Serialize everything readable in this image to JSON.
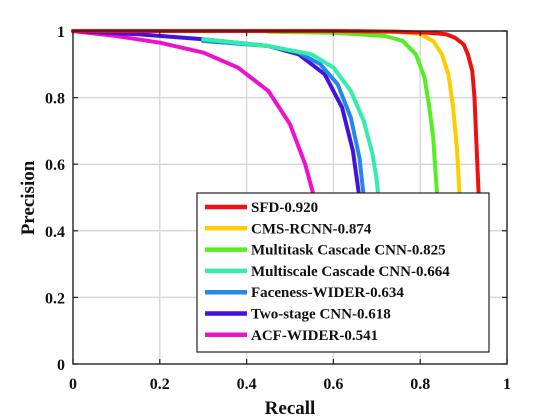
{
  "chart_data": {
    "type": "line",
    "title": "",
    "xlabel": "Recall",
    "ylabel": "Precision",
    "xlim": [
      0,
      1
    ],
    "ylim": [
      0,
      1
    ],
    "xticks": [
      0,
      0.2,
      0.4,
      0.6,
      0.8,
      1
    ],
    "yticks": [
      0,
      0.2,
      0.4,
      0.6,
      0.8,
      1
    ],
    "xtick_labels": [
      "0",
      "0.2",
      "0.4",
      "0.6",
      "0.8",
      "1"
    ],
    "ytick_labels": [
      "0",
      "0.2",
      "0.4",
      "0.6",
      "0.8",
      "1"
    ],
    "grid": true,
    "legend_position": "bottom-right",
    "series": [
      {
        "name": "SFD-0.920",
        "color": "#ee1111",
        "x": [
          0,
          0.2,
          0.4,
          0.6,
          0.75,
          0.82,
          0.86,
          0.88,
          0.9,
          0.91,
          0.92,
          0.925,
          0.93,
          0.935,
          0.938
        ],
        "y": [
          1,
          1,
          1,
          1,
          0.998,
          0.995,
          0.99,
          0.98,
          0.96,
          0.93,
          0.88,
          0.8,
          0.65,
          0.5,
          0.41
        ]
      },
      {
        "name": "CMS-RCNN-0.874",
        "color": "#ffcc00",
        "x": [
          0.45,
          0.6,
          0.75,
          0.8,
          0.83,
          0.85,
          0.865,
          0.875,
          0.885,
          0.89,
          0.895
        ],
        "y": [
          1,
          1,
          0.998,
          0.99,
          0.97,
          0.93,
          0.87,
          0.78,
          0.64,
          0.52,
          0.41
        ]
      },
      {
        "name": "Multitask Cascade CNN-0.825",
        "color": "#55ee22",
        "x": [
          0.45,
          0.6,
          0.72,
          0.76,
          0.79,
          0.81,
          0.82,
          0.83,
          0.835,
          0.84,
          0.845
        ],
        "y": [
          0.998,
          0.995,
          0.985,
          0.97,
          0.93,
          0.86,
          0.78,
          0.68,
          0.58,
          0.49,
          0.41
        ]
      },
      {
        "name": "Multiscale Cascade CNN-0.664",
        "color": "#33eeaa",
        "x": [
          0.3,
          0.45,
          0.55,
          0.6,
          0.64,
          0.67,
          0.69,
          0.7,
          0.705,
          0.71
        ],
        "y": [
          0.975,
          0.955,
          0.93,
          0.89,
          0.82,
          0.73,
          0.63,
          0.55,
          0.48,
          0.41
        ]
      },
      {
        "name": "Faceness-WIDER-0.634",
        "color": "#2288ee",
        "x": [
          0.3,
          0.45,
          0.52,
          0.57,
          0.61,
          0.64,
          0.66,
          0.67,
          0.675
        ],
        "y": [
          0.97,
          0.955,
          0.935,
          0.9,
          0.84,
          0.74,
          0.62,
          0.5,
          0.41
        ]
      },
      {
        "name": "Two-stage CNN-0.618",
        "color": "#4411dd",
        "x": [
          0,
          0.15,
          0.3,
          0.45,
          0.52,
          0.58,
          0.62,
          0.645,
          0.66,
          0.665
        ],
        "y": [
          1,
          0.99,
          0.975,
          0.955,
          0.93,
          0.87,
          0.77,
          0.64,
          0.5,
          0.41
        ]
      },
      {
        "name": "ACF-WIDER-0.541",
        "color": "#ee11cc",
        "x": [
          0,
          0.1,
          0.2,
          0.3,
          0.38,
          0.45,
          0.5,
          0.535,
          0.56,
          0.575
        ],
        "y": [
          1,
          0.985,
          0.965,
          0.935,
          0.89,
          0.82,
          0.72,
          0.6,
          0.48,
          0.41
        ]
      }
    ]
  }
}
